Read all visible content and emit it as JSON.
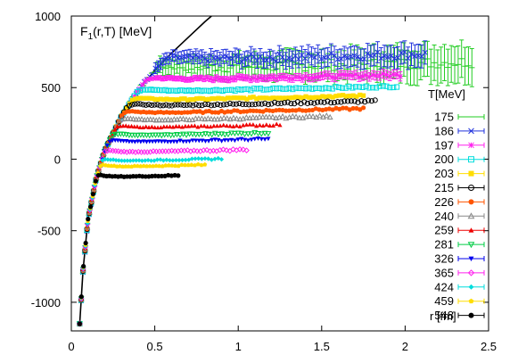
{
  "chart_data": {
    "type": "scatter",
    "title": "F1(r,T) [MeV]",
    "title_main": "F",
    "title_sub": "1",
    "title_rest": "(r,T) [MeV]",
    "xlabel": "r [fm]",
    "legend_title": "T[MeV]",
    "xlim": [
      0,
      2.5
    ],
    "ylim": [
      -1200,
      1000
    ],
    "x_ticks": [
      0,
      0.5,
      1,
      1.5,
      2,
      2.5
    ],
    "x_tick_labels": [
      "0",
      "0.5",
      "1",
      "1.5",
      "2",
      "2.5"
    ],
    "y_ticks": [
      -1000,
      -500,
      0,
      500,
      1000
    ],
    "y_tick_labels": [
      "-1000",
      "-500",
      "0",
      "500",
      "1000"
    ],
    "grid": false,
    "legend_position": "right",
    "reference_curve": {
      "name": "",
      "color": "#000000",
      "points": [
        [
          0.05,
          -1150
        ],
        [
          0.07,
          -780
        ],
        [
          0.1,
          -420
        ],
        [
          0.15,
          -130
        ],
        [
          0.2,
          60
        ],
        [
          0.3,
          300
        ],
        [
          0.4,
          480
        ],
        [
          0.5,
          620
        ],
        [
          0.6,
          740
        ],
        [
          0.7,
          850
        ],
        [
          0.8,
          960
        ],
        [
          0.84,
          1000
        ]
      ]
    },
    "series": [
      {
        "name": "175",
        "color": "#22cc22",
        "marker": "bar",
        "sat": 640,
        "rmax": 2.4,
        "err": true,
        "errsize": 90
      },
      {
        "name": "186",
        "color": "#2233dd",
        "marker": "x",
        "sat": 700,
        "rmax": 2.12,
        "err": true,
        "errsize": 60
      },
      {
        "name": "197",
        "color": "#ff22ee",
        "marker": "star",
        "sat": 560,
        "rmax": 1.97,
        "err": true,
        "errsize": 25
      },
      {
        "name": "200",
        "color": "#00dddd",
        "marker": "square",
        "sat": 480,
        "rmax": 1.95,
        "err": false,
        "errsize": 0
      },
      {
        "name": "203",
        "color": "#ffdd00",
        "marker": "filled-square",
        "sat": 420,
        "rmax": 1.75,
        "err": false,
        "errsize": 0
      },
      {
        "name": "215",
        "color": "#000000",
        "marker": "circle",
        "sat": 380,
        "rmax": 1.82,
        "err": false,
        "errsize": 0
      },
      {
        "name": "226",
        "color": "#ff5500",
        "marker": "filled-circle",
        "sat": 330,
        "rmax": 1.75,
        "err": false,
        "errsize": 0
      },
      {
        "name": "240",
        "color": "#888888",
        "marker": "triangle",
        "sat": 280,
        "rmax": 1.55,
        "err": false,
        "errsize": 0
      },
      {
        "name": "259",
        "color": "#ee0000",
        "marker": "filled-triangle",
        "sat": 230,
        "rmax": 1.25,
        "err": false,
        "errsize": 0
      },
      {
        "name": "281",
        "color": "#00cc44",
        "marker": "down-triangle",
        "sat": 175,
        "rmax": 1.18,
        "err": false,
        "errsize": 0
      },
      {
        "name": "326",
        "color": "#0000ee",
        "marker": "filled-down-triangle",
        "sat": 130,
        "rmax": 1.18,
        "err": false,
        "errsize": 0
      },
      {
        "name": "365",
        "color": "#ff22ee",
        "marker": "diamond",
        "sat": 60,
        "rmax": 1.05,
        "err": false,
        "errsize": 0
      },
      {
        "name": "424",
        "color": "#00dddd",
        "marker": "filled-diamond",
        "sat": 0,
        "rmax": 0.9,
        "err": false,
        "errsize": 0
      },
      {
        "name": "459",
        "color": "#ffdd00",
        "marker": "pentagon",
        "sat": -40,
        "rmax": 0.8,
        "err": false,
        "errsize": 0
      },
      {
        "name": "548",
        "color": "#000000",
        "marker": "filled-circle",
        "sat": -110,
        "rmax": 0.64,
        "err": false,
        "errsize": 0
      }
    ]
  }
}
